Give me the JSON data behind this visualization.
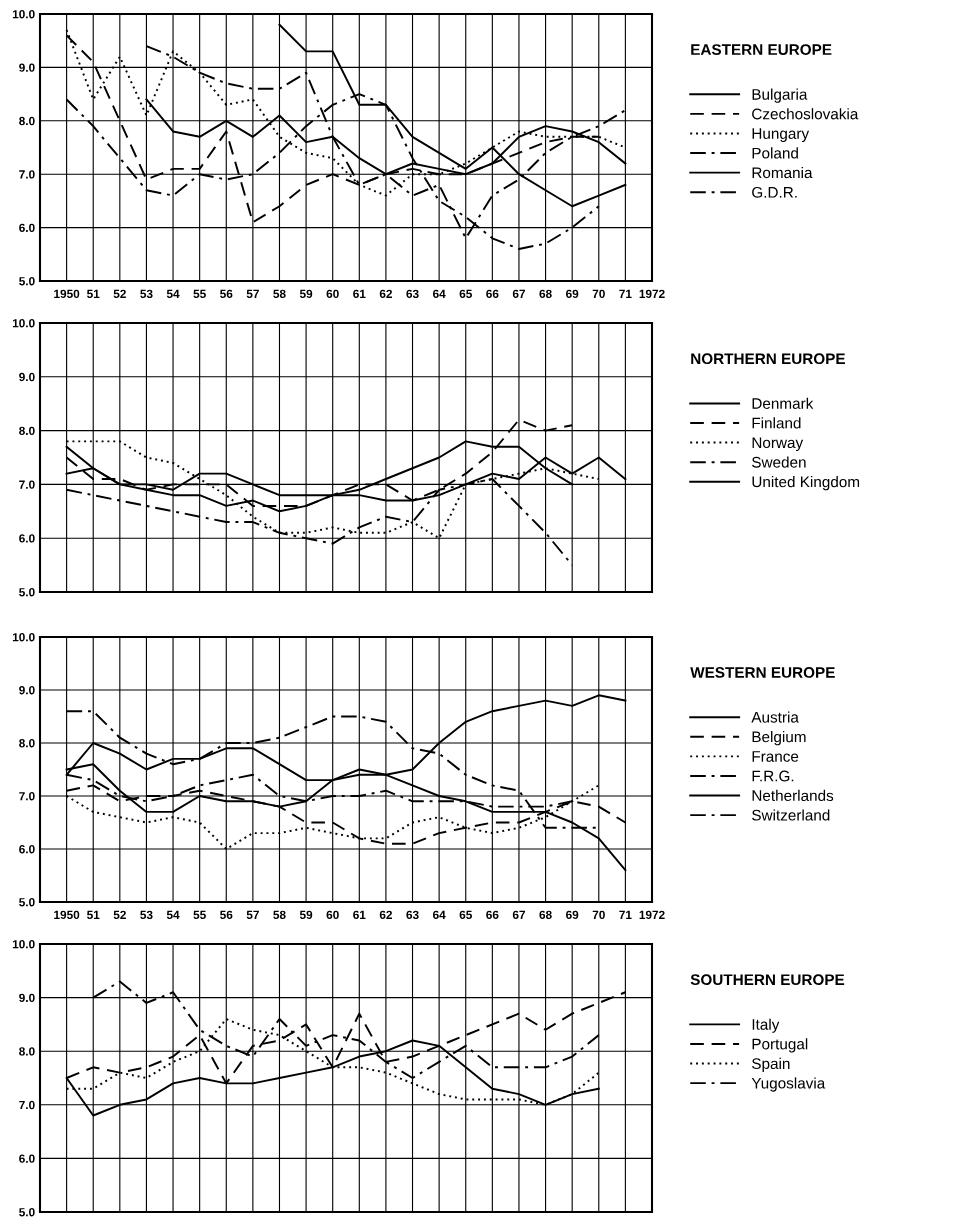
{
  "chart_data": [
    {
      "type": "line",
      "legend_title": "EASTERN EUROPE",
      "x": [
        1950,
        1951,
        1952,
        1953,
        1954,
        1955,
        1956,
        1957,
        1958,
        1959,
        1960,
        1961,
        1962,
        1963,
        1964,
        1965,
        1966,
        1967,
        1968,
        1969,
        1970,
        1971
      ],
      "xlim": [
        1949,
        1972
      ],
      "xticks": [
        {
          "value": 1950,
          "label": "1950"
        },
        {
          "value": 1951,
          "label": "51"
        },
        {
          "value": 1952,
          "label": "52"
        },
        {
          "value": 1953,
          "label": "53"
        },
        {
          "value": 1954,
          "label": "54"
        },
        {
          "value": 1955,
          "label": "55"
        },
        {
          "value": 1956,
          "label": "56"
        },
        {
          "value": 1957,
          "label": "57"
        },
        {
          "value": 1958,
          "label": "58"
        },
        {
          "value": 1959,
          "label": "59"
        },
        {
          "value": 1960,
          "label": "60"
        },
        {
          "value": 1961,
          "label": "61"
        },
        {
          "value": 1962,
          "label": "62"
        },
        {
          "value": 1963,
          "label": "63"
        },
        {
          "value": 1964,
          "label": "64"
        },
        {
          "value": 1965,
          "label": "65"
        },
        {
          "value": 1966,
          "label": "66"
        },
        {
          "value": 1967,
          "label": "67"
        },
        {
          "value": 1968,
          "label": "68"
        },
        {
          "value": 1969,
          "label": "69"
        },
        {
          "value": 1970,
          "label": "70"
        },
        {
          "value": 1971,
          "label": "71"
        },
        {
          "value": 1972,
          "label": "1972"
        }
      ],
      "ylim": [
        5,
        10
      ],
      "yticks": [
        {
          "value": 5,
          "label": "5.0"
        },
        {
          "value": 6,
          "label": "6.0"
        },
        {
          "value": 7,
          "label": "7.0"
        },
        {
          "value": 8,
          "label": "8.0"
        },
        {
          "value": 9,
          "label": "9.0"
        },
        {
          "value": 10,
          "label": "10.0"
        }
      ],
      "grid": true,
      "legend": "right",
      "series": [
        {
          "name": "Bulgaria",
          "color": "#000000",
          "line_style": "solid",
          "values": [
            null,
            null,
            null,
            8.4,
            7.8,
            7.7,
            8.0,
            7.7,
            8.1,
            7.6,
            7.7,
            7.3,
            7.0,
            7.2,
            7.1,
            7.0,
            7.2,
            7.7,
            7.9,
            7.8,
            7.6,
            7.2
          ]
        },
        {
          "name": "Czechoslovakia",
          "color": "#000000",
          "line_style": "dashed",
          "values": [
            9.6,
            9.1,
            8.0,
            6.9,
            7.1,
            7.1,
            7.8,
            6.1,
            6.4,
            6.8,
            7.0,
            6.8,
            7.0,
            7.1,
            7.0,
            7.0,
            7.2,
            7.4,
            7.6,
            7.7,
            7.7,
            null
          ]
        },
        {
          "name": "Hungary",
          "color": "#000000",
          "line_style": "dotted",
          "values": [
            9.7,
            8.4,
            9.2,
            8.1,
            9.3,
            8.9,
            8.3,
            8.4,
            7.7,
            7.4,
            7.3,
            6.8,
            6.6,
            7.0,
            7.0,
            7.2,
            7.5,
            7.8,
            7.7,
            7.7,
            7.7,
            7.5
          ]
        },
        {
          "name": "Poland",
          "color": "#000000",
          "line_style": "dashdot",
          "values": [
            null,
            null,
            null,
            9.4,
            9.2,
            8.9,
            8.7,
            8.6,
            8.6,
            8.9,
            7.7,
            6.8,
            7.0,
            6.6,
            6.8,
            5.8,
            6.6,
            6.9,
            7.4,
            7.7,
            7.9,
            8.2
          ]
        },
        {
          "name": "Romania",
          "color": "#000000",
          "line_style": "solid",
          "values": [
            null,
            null,
            null,
            null,
            null,
            null,
            null,
            null,
            9.8,
            9.3,
            9.3,
            8.3,
            8.3,
            7.7,
            7.4,
            7.1,
            7.5,
            7.0,
            6.7,
            6.4,
            6.6,
            6.8
          ]
        },
        {
          "name": "G.D.R.",
          "color": "#000000",
          "line_style": "dashdot",
          "values": [
            8.4,
            7.9,
            7.3,
            6.7,
            6.6,
            7.0,
            6.9,
            7.0,
            7.4,
            7.9,
            8.3,
            8.5,
            8.3,
            7.3,
            6.5,
            6.2,
            5.8,
            5.6,
            5.7,
            6.0,
            6.4,
            null
          ]
        }
      ]
    },
    {
      "type": "line",
      "legend_title": "NORTHERN EUROPE",
      "x": [
        1950,
        1951,
        1952,
        1953,
        1954,
        1955,
        1956,
        1957,
        1958,
        1959,
        1960,
        1961,
        1962,
        1963,
        1964,
        1965,
        1966,
        1967,
        1968,
        1969,
        1970,
        1971
      ],
      "xlim": [
        1949,
        1972
      ],
      "xticks": [
        {
          "value": 1950,
          "label": null
        },
        {
          "value": 1951,
          "label": null
        },
        {
          "value": 1952,
          "label": null
        },
        {
          "value": 1953,
          "label": null
        },
        {
          "value": 1954,
          "label": null
        },
        {
          "value": 1955,
          "label": null
        },
        {
          "value": 1956,
          "label": null
        },
        {
          "value": 1957,
          "label": null
        },
        {
          "value": 1958,
          "label": null
        },
        {
          "value": 1959,
          "label": null
        },
        {
          "value": 1960,
          "label": null
        },
        {
          "value": 1961,
          "label": null
        },
        {
          "value": 1962,
          "label": null
        },
        {
          "value": 1963,
          "label": null
        },
        {
          "value": 1964,
          "label": null
        },
        {
          "value": 1965,
          "label": null
        },
        {
          "value": 1966,
          "label": null
        },
        {
          "value": 1967,
          "label": null
        },
        {
          "value": 1968,
          "label": null
        },
        {
          "value": 1969,
          "label": null
        },
        {
          "value": 1970,
          "label": null
        },
        {
          "value": 1971,
          "label": null
        },
        {
          "value": 1972,
          "label": null
        }
      ],
      "tick_labels": "y",
      "ylim": [
        5,
        10
      ],
      "yticks": [
        {
          "value": 5,
          "label": "5.0"
        },
        {
          "value": 6,
          "label": "6.0"
        },
        {
          "value": 7,
          "label": "7.0"
        },
        {
          "value": 8,
          "label": "8.0"
        },
        {
          "value": 9,
          "label": "9.0"
        },
        {
          "value": 10,
          "label": "10.0"
        }
      ],
      "grid": true,
      "legend": "right",
      "series": [
        {
          "name": "Denmark",
          "color": "#000000",
          "line_style": "solid",
          "values": [
            7.7,
            7.3,
            7.0,
            6.9,
            6.8,
            6.8,
            6.6,
            6.7,
            6.5,
            6.6,
            6.8,
            6.9,
            7.1,
            7.3,
            7.5,
            7.8,
            7.7,
            7.7,
            7.3,
            7.0,
            null,
            null
          ]
        },
        {
          "name": "Finland",
          "color": "#000000",
          "line_style": "dashed",
          "values": [
            7.5,
            7.1,
            7.1,
            6.9,
            7.0,
            7.0,
            7.0,
            6.6,
            6.6,
            6.6,
            6.8,
            7.0,
            7.0,
            6.7,
            6.9,
            7.2,
            7.6,
            8.2,
            8.0,
            8.1,
            null,
            null
          ]
        },
        {
          "name": "Norway",
          "color": "#000000",
          "line_style": "dotted",
          "values": [
            7.8,
            7.8,
            7.8,
            7.5,
            7.4,
            7.1,
            6.8,
            6.4,
            6.1,
            6.1,
            6.2,
            6.1,
            6.1,
            6.3,
            6.0,
            7.0,
            7.1,
            7.2,
            7.3,
            7.2,
            7.1,
            null
          ]
        },
        {
          "name": "Sweden",
          "color": "#000000",
          "line_style": "dashdot",
          "values": [
            6.9,
            6.8,
            6.7,
            6.6,
            6.5,
            6.4,
            6.3,
            6.3,
            6.1,
            6.0,
            5.9,
            6.2,
            6.4,
            6.3,
            6.9,
            7.0,
            7.1,
            6.6,
            6.1,
            5.5,
            null,
            null
          ]
        },
        {
          "name": "United Kingdom",
          "color": "#000000",
          "line_style": "solid",
          "values": [
            7.2,
            7.3,
            7.0,
            7.0,
            6.9,
            7.2,
            7.2,
            7.0,
            6.8,
            6.8,
            6.8,
            6.8,
            6.7,
            6.7,
            6.8,
            7.0,
            7.2,
            7.1,
            7.5,
            7.2,
            7.5,
            7.1
          ]
        }
      ]
    },
    {
      "type": "line",
      "legend_title": "WESTERN EUROPE",
      "x": [
        1950,
        1951,
        1952,
        1953,
        1954,
        1955,
        1956,
        1957,
        1958,
        1959,
        1960,
        1961,
        1962,
        1963,
        1964,
        1965,
        1966,
        1967,
        1968,
        1969,
        1970,
        1971
      ],
      "xlim": [
        1949,
        1972
      ],
      "xticks": [
        {
          "value": 1950,
          "label": "1950"
        },
        {
          "value": 1951,
          "label": "51"
        },
        {
          "value": 1952,
          "label": "52"
        },
        {
          "value": 1953,
          "label": "53"
        },
        {
          "value": 1954,
          "label": "54"
        },
        {
          "value": 1955,
          "label": "55"
        },
        {
          "value": 1956,
          "label": "56"
        },
        {
          "value": 1957,
          "label": "57"
        },
        {
          "value": 1958,
          "label": "58"
        },
        {
          "value": 1959,
          "label": "59"
        },
        {
          "value": 1960,
          "label": "60"
        },
        {
          "value": 1961,
          "label": "61"
        },
        {
          "value": 1962,
          "label": "62"
        },
        {
          "value": 1963,
          "label": "63"
        },
        {
          "value": 1964,
          "label": "64"
        },
        {
          "value": 1965,
          "label": "65"
        },
        {
          "value": 1966,
          "label": "66"
        },
        {
          "value": 1967,
          "label": "67"
        },
        {
          "value": 1968,
          "label": "68"
        },
        {
          "value": 1969,
          "label": "69"
        },
        {
          "value": 1970,
          "label": "70"
        },
        {
          "value": 1971,
          "label": "71"
        },
        {
          "value": 1972,
          "label": "1972"
        }
      ],
      "ylim": [
        5,
        10
      ],
      "yticks": [
        {
          "value": 5,
          "label": "5.0"
        },
        {
          "value": 6,
          "label": "6.0"
        },
        {
          "value": 7,
          "label": "7.0"
        },
        {
          "value": 8,
          "label": "8.0"
        },
        {
          "value": 9,
          "label": "9.0"
        },
        {
          "value": 10,
          "label": "10.0"
        }
      ],
      "grid": true,
      "legend": "right",
      "series": [
        {
          "name": "Austria",
          "color": "#000000",
          "line_style": "solid",
          "values": [
            7.5,
            7.6,
            7.1,
            6.7,
            6.7,
            7.0,
            6.9,
            6.9,
            6.8,
            6.9,
            7.3,
            7.5,
            7.4,
            7.2,
            7.0,
            6.9,
            6.7,
            6.7,
            6.7,
            6.5,
            6.2,
            5.6
          ]
        },
        {
          "name": "Belgium",
          "color": "#000000",
          "line_style": "dashed",
          "values": [
            7.1,
            7.2,
            6.9,
            7.0,
            7.0,
            7.1,
            7.0,
            6.9,
            6.8,
            6.5,
            6.5,
            6.2,
            6.1,
            6.1,
            6.3,
            6.4,
            6.5,
            6.5,
            6.7,
            6.9,
            6.8,
            6.5
          ]
        },
        {
          "name": "France",
          "color": "#000000",
          "line_style": "dotted",
          "values": [
            7.0,
            6.7,
            6.6,
            6.5,
            6.6,
            6.5,
            6.0,
            6.3,
            6.3,
            6.4,
            6.3,
            6.2,
            6.2,
            6.5,
            6.6,
            6.4,
            6.3,
            6.4,
            6.6,
            6.9,
            7.2,
            null
          ]
        },
        {
          "name": "F.R.G.",
          "color": "#000000",
          "line_style": "dashdot",
          "values": [
            7.4,
            7.3,
            7.0,
            6.9,
            7.0,
            7.2,
            7.3,
            7.4,
            7.0,
            6.9,
            7.0,
            7.0,
            7.1,
            6.9,
            6.9,
            6.9,
            6.8,
            6.8,
            6.8,
            6.9,
            null,
            null
          ]
        },
        {
          "name": "Netherlands",
          "color": "#000000",
          "line_style": "solid",
          "values": [
            7.4,
            8.0,
            7.8,
            7.5,
            7.7,
            7.7,
            7.9,
            7.9,
            7.6,
            7.3,
            7.3,
            7.4,
            7.4,
            7.5,
            8.0,
            8.4,
            8.6,
            8.7,
            8.8,
            8.7,
            8.9,
            8.8
          ]
        },
        {
          "name": "Switzerland",
          "color": "#000000",
          "line_style": "dashdot",
          "values": [
            8.6,
            8.6,
            8.1,
            7.8,
            7.6,
            7.7,
            8.0,
            8.0,
            8.1,
            8.3,
            8.5,
            8.5,
            8.4,
            7.9,
            7.8,
            7.4,
            7.2,
            7.1,
            6.4,
            6.4,
            6.4,
            null
          ]
        }
      ]
    },
    {
      "type": "line",
      "legend_title": "SOUTHERN EUROPE",
      "x": [
        1950,
        1951,
        1952,
        1953,
        1954,
        1955,
        1956,
        1957,
        1958,
        1959,
        1960,
        1961,
        1962,
        1963,
        1964,
        1965,
        1966,
        1967,
        1968,
        1969,
        1970,
        1971
      ],
      "xlim": [
        1949,
        1972
      ],
      "xticks": [
        {
          "value": 1950,
          "label": null
        },
        {
          "value": 1951,
          "label": null
        },
        {
          "value": 1952,
          "label": null
        },
        {
          "value": 1953,
          "label": null
        },
        {
          "value": 1954,
          "label": null
        },
        {
          "value": 1955,
          "label": null
        },
        {
          "value": 1956,
          "label": null
        },
        {
          "value": 1957,
          "label": null
        },
        {
          "value": 1958,
          "label": null
        },
        {
          "value": 1959,
          "label": null
        },
        {
          "value": 1960,
          "label": null
        },
        {
          "value": 1961,
          "label": null
        },
        {
          "value": 1962,
          "label": null
        },
        {
          "value": 1963,
          "label": null
        },
        {
          "value": 1964,
          "label": null
        },
        {
          "value": 1965,
          "label": null
        },
        {
          "value": 1966,
          "label": null
        },
        {
          "value": 1967,
          "label": null
        },
        {
          "value": 1968,
          "label": null
        },
        {
          "value": 1969,
          "label": null
        },
        {
          "value": 1970,
          "label": null
        },
        {
          "value": 1971,
          "label": null
        },
        {
          "value": 1972,
          "label": null
        }
      ],
      "tick_labels": "y",
      "ylim": [
        5,
        10
      ],
      "yticks": [
        {
          "value": 5,
          "label": "5.0"
        },
        {
          "value": 6,
          "label": "6.0"
        },
        {
          "value": 7,
          "label": "7.0"
        },
        {
          "value": 8,
          "label": "8.0"
        },
        {
          "value": 9,
          "label": "9.0"
        },
        {
          "value": 10,
          "label": "10.0"
        }
      ],
      "grid": true,
      "legend": "right",
      "series": [
        {
          "name": "Italy",
          "color": "#000000",
          "line_style": "solid",
          "values": [
            7.5,
            6.8,
            7.0,
            7.1,
            7.4,
            7.5,
            7.4,
            7.4,
            7.5,
            7.6,
            7.7,
            7.9,
            8.0,
            8.2,
            8.1,
            7.7,
            7.3,
            7.2,
            7.0,
            7.2,
            7.3,
            null
          ]
        },
        {
          "name": "Portugal",
          "color": "#000000",
          "line_style": "dashed",
          "values": [
            7.5,
            7.7,
            7.6,
            7.7,
            7.9,
            8.3,
            7.4,
            8.1,
            8.2,
            8.5,
            7.7,
            8.7,
            7.8,
            7.9,
            8.1,
            8.3,
            8.5,
            8.7,
            8.4,
            8.7,
            8.9,
            9.1
          ]
        },
        {
          "name": "Spain",
          "color": "#000000",
          "line_style": "dotted",
          "values": [
            7.3,
            7.3,
            7.6,
            7.5,
            7.8,
            8.0,
            8.6,
            8.4,
            8.3,
            8.0,
            7.7,
            7.7,
            7.6,
            7.4,
            7.2,
            7.1,
            7.1,
            7.1,
            7.0,
            7.2,
            7.6,
            null
          ]
        },
        {
          "name": "Yugoslavia",
          "color": "#000000",
          "line_style": "dashdot",
          "values": [
            null,
            9.0,
            9.3,
            8.9,
            9.1,
            8.4,
            8.1,
            7.9,
            8.6,
            8.1,
            8.3,
            8.2,
            7.8,
            7.5,
            7.8,
            8.1,
            7.7,
            7.7,
            7.7,
            7.9,
            8.3,
            null
          ]
        }
      ]
    }
  ]
}
